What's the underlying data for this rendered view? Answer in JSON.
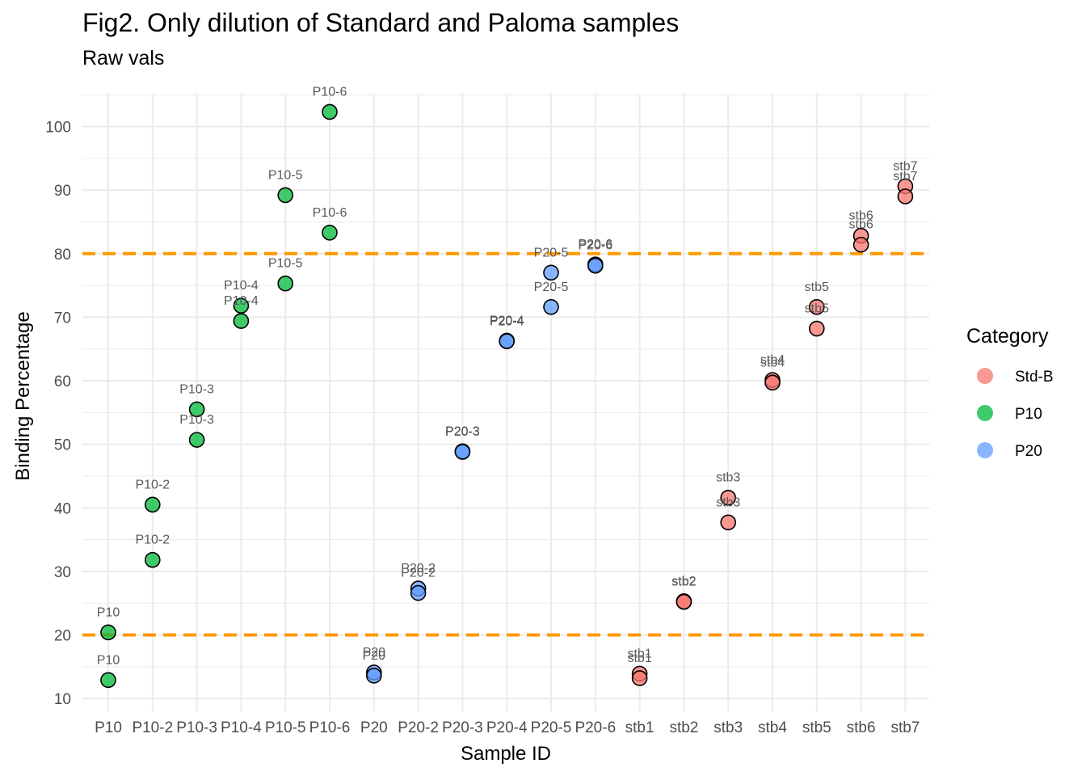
{
  "chart_data": {
    "type": "scatter",
    "title": "Fig2. Only dilution of Standard and Paloma samples",
    "subtitle": "Raw vals",
    "xlabel": "Sample ID",
    "ylabel": "Binding Percentage",
    "categories": [
      "P10",
      "P10-2",
      "P10-3",
      "P10-4",
      "P10-5",
      "P10-6",
      "P20",
      "P20-2",
      "P20-3",
      "P20-4",
      "P20-5",
      "P20-6",
      "stb1",
      "stb2",
      "stb3",
      "stb4",
      "stb5",
      "stb6",
      "stb7"
    ],
    "ylim": [
      8.5,
      106
    ],
    "yticks": [
      10,
      20,
      30,
      40,
      50,
      60,
      70,
      80,
      90,
      100
    ],
    "hlines": [
      20,
      80
    ],
    "hline_color": "#FF9900",
    "grid": true,
    "legend": {
      "title": "Category",
      "position": "right",
      "items": [
        {
          "label": "Std-B",
          "color": "#F8766D"
        },
        {
          "label": "P10",
          "color": "#00BA38"
        },
        {
          "label": "P20",
          "color": "#619CFF"
        }
      ]
    },
    "series": [
      {
        "name": "Std-B",
        "color": "#F8766D",
        "points": [
          {
            "x": "stb1",
            "y": 13.9,
            "label": "stb1"
          },
          {
            "x": "stb1",
            "y": 13.2,
            "label": "stb1"
          },
          {
            "x": "stb2",
            "y": 25.3,
            "label": "stb2"
          },
          {
            "x": "stb2",
            "y": 25.2,
            "label": "stb2"
          },
          {
            "x": "stb3",
            "y": 41.6,
            "label": "stb3"
          },
          {
            "x": "stb3",
            "y": 37.7,
            "label": "stb3"
          },
          {
            "x": "stb4",
            "y": 60.1,
            "label": "stb4"
          },
          {
            "x": "stb4",
            "y": 59.7,
            "label": "stb4"
          },
          {
            "x": "stb5",
            "y": 71.6,
            "label": "stb5"
          },
          {
            "x": "stb5",
            "y": 68.2,
            "label": "stb5"
          },
          {
            "x": "stb6",
            "y": 82.8,
            "label": "stb6"
          },
          {
            "x": "stb6",
            "y": 81.4,
            "label": "stb6"
          },
          {
            "x": "stb7",
            "y": 90.6,
            "label": "stb7"
          },
          {
            "x": "stb7",
            "y": 89.0,
            "label": "stb7"
          }
        ]
      },
      {
        "name": "P10",
        "color": "#00BA38",
        "points": [
          {
            "x": "P10",
            "y": 20.4,
            "label": "P10"
          },
          {
            "x": "P10",
            "y": 12.9,
            "label": "P10"
          },
          {
            "x": "P10-2",
            "y": 40.5,
            "label": "P10-2"
          },
          {
            "x": "P10-2",
            "y": 31.8,
            "label": "P10-2"
          },
          {
            "x": "P10-3",
            "y": 55.5,
            "label": "P10-3"
          },
          {
            "x": "P10-3",
            "y": 50.7,
            "label": "P10-3"
          },
          {
            "x": "P10-4",
            "y": 71.8,
            "label": "P10-4"
          },
          {
            "x": "P10-4",
            "y": 69.4,
            "label": "P10-4"
          },
          {
            "x": "P10-5",
            "y": 89.2,
            "label": "P10-5"
          },
          {
            "x": "P10-5",
            "y": 75.3,
            "label": "P10-5"
          },
          {
            "x": "P10-6",
            "y": 102.3,
            "label": "P10-6"
          },
          {
            "x": "P10-6",
            "y": 83.3,
            "label": "P10-6"
          }
        ]
      },
      {
        "name": "P20",
        "color": "#619CFF",
        "points": [
          {
            "x": "P20",
            "y": 14.1,
            "label": "P20"
          },
          {
            "x": "P20",
            "y": 13.6,
            "label": "P20"
          },
          {
            "x": "P20-2",
            "y": 27.3,
            "label": "P20-2"
          },
          {
            "x": "P20-2",
            "y": 26.6,
            "label": "P20-2"
          },
          {
            "x": "P20-3",
            "y": 48.9,
            "label": "P20-3"
          },
          {
            "x": "P20-3",
            "y": 48.8,
            "label": "P20-3"
          },
          {
            "x": "P20-4",
            "y": 66.3,
            "label": "P20-4"
          },
          {
            "x": "P20-4",
            "y": 66.2,
            "label": "P20-4"
          },
          {
            "x": "P20-5",
            "y": 77.0,
            "label": "P20-5"
          },
          {
            "x": "P20-5",
            "y": 71.6,
            "label": "P20-5"
          },
          {
            "x": "P20-6",
            "y": 78.3,
            "label": "P20-6"
          },
          {
            "x": "P20-6",
            "y": 78.1,
            "label": "P20-6"
          }
        ]
      }
    ]
  }
}
